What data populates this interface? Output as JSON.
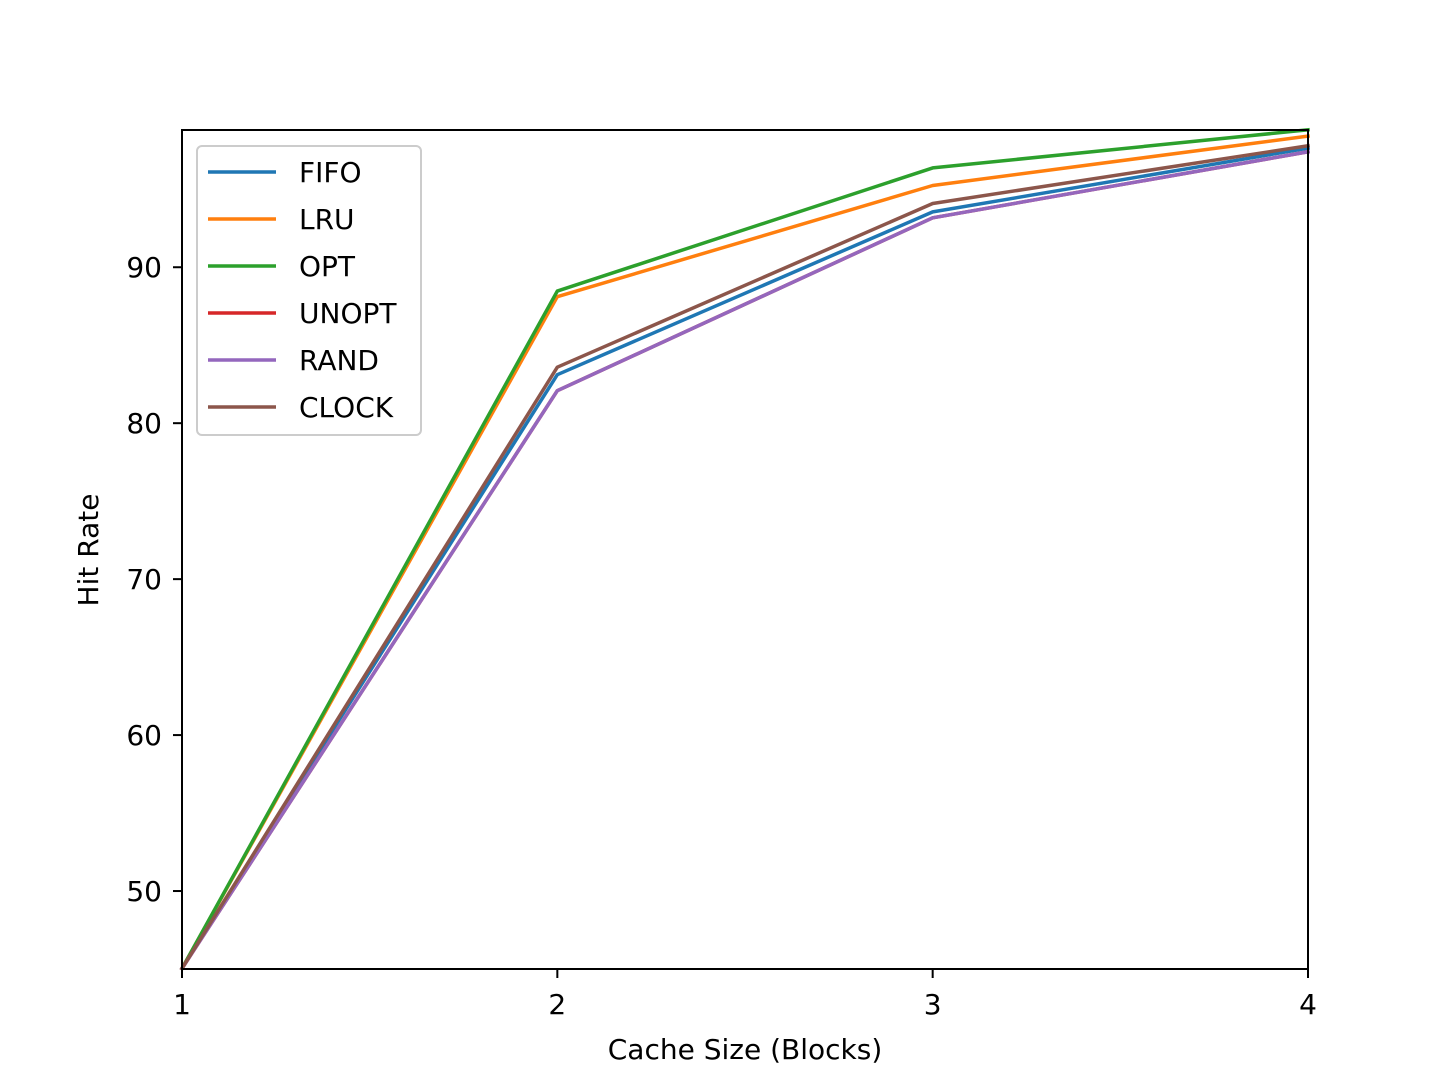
{
  "chart_data": {
    "type": "line",
    "title": "",
    "xlabel": "Cache Size (Blocks)",
    "ylabel": "Hit Rate",
    "xlim": [
      1,
      4
    ],
    "ylim": [
      45,
      98.8
    ],
    "xticks": [
      1,
      2,
      3,
      4
    ],
    "yticks": [
      50,
      60,
      70,
      80,
      90
    ],
    "grid": false,
    "legend_position": "upper-left",
    "x": [
      1,
      2,
      3,
      4
    ],
    "series": [
      {
        "name": "FIFO",
        "color": "#1f77b4",
        "values": [
          45.03,
          83.11,
          93.55,
          97.63
        ]
      },
      {
        "name": "LRU",
        "color": "#ff7f0e",
        "values": [
          45.03,
          88.11,
          95.24,
          98.41
        ]
      },
      {
        "name": "OPT",
        "color": "#2ca02c",
        "values": [
          45.03,
          88.47,
          96.37,
          98.81
        ]
      },
      {
        "name": "UNOPT",
        "color": "#d62728",
        "values": [
          45.03,
          82.08,
          93.17,
          97.4
        ]
      },
      {
        "name": "RAND",
        "color": "#9467bd",
        "values": [
          45.03,
          82.08,
          93.17,
          97.4
        ]
      },
      {
        "name": "CLOCK",
        "color": "#8c564b",
        "values": [
          45.03,
          83.59,
          94.09,
          97.79
        ]
      }
    ]
  }
}
